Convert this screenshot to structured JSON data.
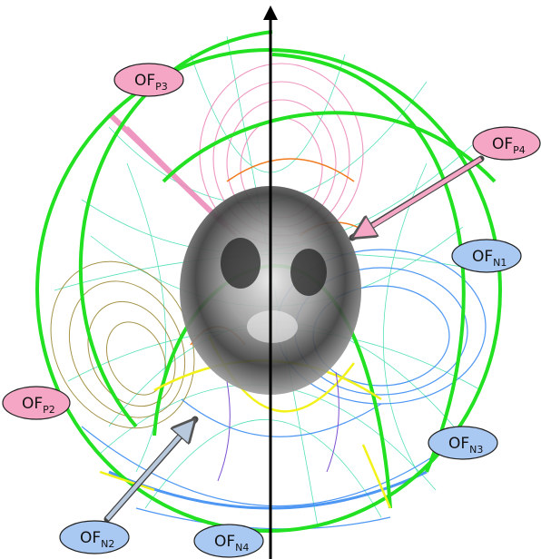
{
  "figure": {
    "labels": [
      {
        "id": "OFP3",
        "main": "OF",
        "sub": "P3",
        "fill": "#f4a6c4"
      },
      {
        "id": "OFP4",
        "main": "OF",
        "sub": "P4",
        "fill": "#f4a6c4"
      },
      {
        "id": "OFN1",
        "main": "OF",
        "sub": "N1",
        "fill": "#a9c8f2"
      },
      {
        "id": "OFP2",
        "main": "OF",
        "sub": "P2",
        "fill": "#f4a6c4"
      },
      {
        "id": "OFN3",
        "main": "OF",
        "sub": "N3",
        "fill": "#a9c8f2"
      },
      {
        "id": "OFN2",
        "main": "OF",
        "sub": "N2",
        "fill": "#a9c8f2"
      },
      {
        "id": "OFN4",
        "main": "OF",
        "sub": "N4",
        "fill": "#a9c8f2"
      }
    ],
    "colors": {
      "green": "#22e022",
      "cyan": "#1fd6a0",
      "blue": "#3b8cf2",
      "pink": "#ec86b6",
      "olive": "#8f7a1d",
      "yellow": "#f2f21a",
      "orange": "#f07a1e",
      "purple": "#7d4fd0",
      "axis": "#000000"
    }
  }
}
